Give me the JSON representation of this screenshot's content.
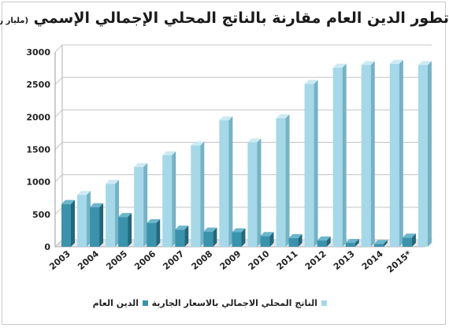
{
  "chart_data": {
    "type": "bar",
    "title": "تطور الدين العام مقارنة بالناتج المحلي الإجمالي الإسمي",
    "subtitle": "(مليار ريال)",
    "categories": [
      "2003",
      "2004",
      "2005",
      "2006",
      "2007",
      "2008",
      "2009",
      "2010",
      "2011",
      "2012",
      "2013",
      "2014",
      "2015*"
    ],
    "series": [
      {
        "name": "الدين العام",
        "color": "#3a93ad",
        "values": [
          660,
          610,
          460,
          365,
          265,
          235,
          225,
          167,
          135,
          98,
          60,
          44,
          142
        ]
      },
      {
        "name": "الناتج المحلي الاجمالي بالاسعار الجارية",
        "color": "#a5d8e8",
        "values": [
          800,
          970,
          1230,
          1410,
          1560,
          1950,
          1610,
          1980,
          2510,
          2760,
          2800,
          2820,
          2800
        ]
      }
    ],
    "yticks": [
      0,
      500,
      1000,
      1500,
      2000,
      2500,
      3000
    ],
    "ylim": [
      0,
      3000
    ],
    "grid": true,
    "legend_position": "bottom"
  }
}
